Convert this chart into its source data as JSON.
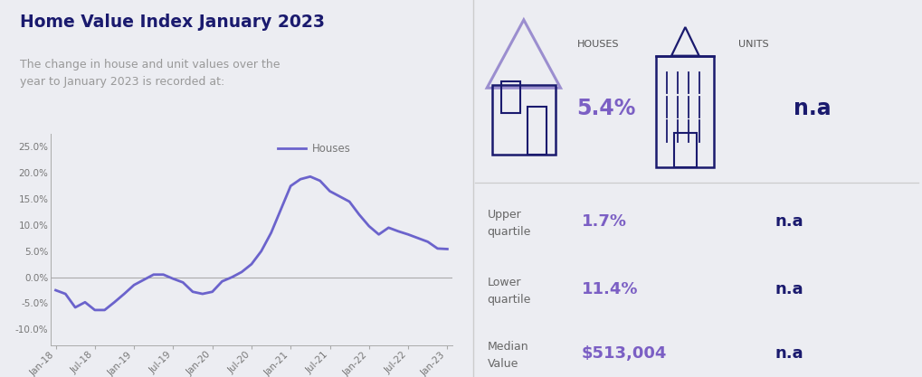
{
  "title": "Home Value Index January 2023",
  "subtitle": "The change in house and unit values over the\nyear to January 2023 is recorded at:",
  "bg_color": "#ecedf2",
  "line_color": "#6b63cc",
  "line_width": 2.0,
  "legend_label": "Houses",
  "y_ticks": [
    -0.1,
    -0.05,
    0.0,
    0.05,
    0.1,
    0.15,
    0.2,
    0.25
  ],
  "y_tick_labels": [
    "-10.0%",
    "-5.0%",
    "0.0%",
    "5.0%",
    "10.0%",
    "15.0%",
    "20.0%",
    "25.0%"
  ],
  "ylim": [
    -0.13,
    0.275
  ],
  "x_labels": [
    "Jan-18",
    "Jul-18",
    "Jan-19",
    "Jul-19",
    "Jan-20",
    "Jul-20",
    "Jan-21",
    "Jul-21",
    "Jan-22",
    "Jul-22",
    "Jan-23"
  ],
  "houses_label": "HOUSES",
  "houses_value": "5.4%",
  "units_label": "UNITS",
  "units_value": "n.a",
  "upper_quartile_label": "Upper\nquartile",
  "upper_quartile_houses": "1.7%",
  "upper_quartile_units": "n.a",
  "lower_quartile_label": "Lower\nquartile",
  "lower_quartile_houses": "11.4%",
  "lower_quartile_units": "n.a",
  "median_label": "Median\nValue",
  "median_houses": "$513,004",
  "median_units": "n.a",
  "title_color": "#1a1a6e",
  "subtitle_color": "#999999",
  "label_color": "#666666",
  "value_color_purple": "#7b5fc4",
  "value_color_dark": "#1a1a6e",
  "house_icon_color_light": "#9b8ecf",
  "house_icon_color_dark": "#1a1a6e",
  "divider_color": "#cccccd",
  "houses_y_data": [
    -0.025,
    -0.032,
    -0.058,
    -0.048,
    -0.063,
    -0.063,
    -0.048,
    -0.032,
    -0.015,
    -0.005,
    0.005,
    0.005,
    -0.003,
    -0.01,
    -0.028,
    -0.032,
    -0.028,
    -0.008,
    0.0,
    0.01,
    0.025,
    0.05,
    0.085,
    0.13,
    0.175,
    0.188,
    0.193,
    0.185,
    0.165,
    0.155,
    0.145,
    0.12,
    0.098,
    0.082,
    0.095,
    0.088,
    0.082,
    0.075,
    0.068,
    0.055,
    0.054
  ],
  "n_points": 41
}
